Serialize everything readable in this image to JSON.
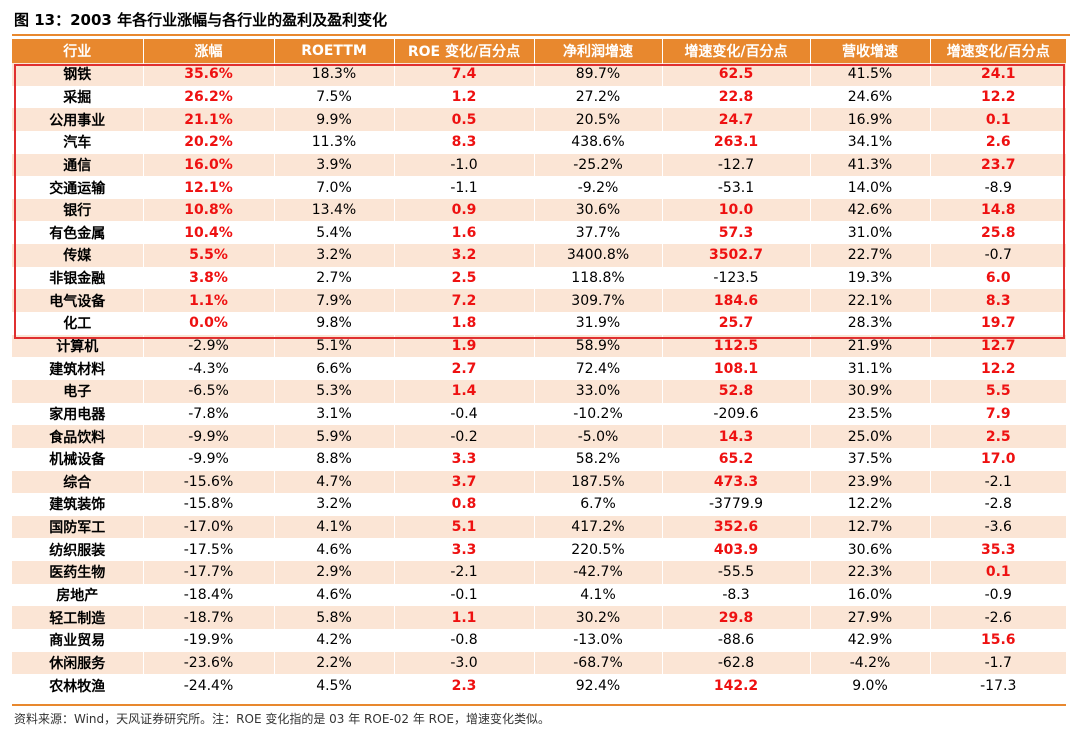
{
  "title": "图 13：2003 年各行业涨幅与各行业的盈利及盈利变化",
  "columns": [
    "行业",
    "涨幅",
    "ROETTM",
    "ROE 变化/百分点",
    "净利润增速",
    "增速变化/百分点",
    "营收增速",
    "增速变化/百分点"
  ],
  "highlight_color": "#ee1111",
  "header_color": "#e8882e",
  "rows": [
    {
      "c": [
        "钢铁",
        "35.6%",
        "18.3%",
        "7.4",
        "89.7%",
        "62.5",
        "41.5%",
        "24.1"
      ],
      "red": [
        1,
        3,
        5,
        7
      ]
    },
    {
      "c": [
        "采掘",
        "26.2%",
        "7.5%",
        "1.2",
        "27.2%",
        "22.8",
        "24.6%",
        "12.2"
      ],
      "red": [
        1,
        3,
        5,
        7
      ]
    },
    {
      "c": [
        "公用事业",
        "21.1%",
        "9.9%",
        "0.5",
        "20.5%",
        "24.7",
        "16.9%",
        "0.1"
      ],
      "red": [
        1,
        3,
        5,
        7
      ]
    },
    {
      "c": [
        "汽车",
        "20.2%",
        "11.3%",
        "8.3",
        "438.6%",
        "263.1",
        "34.1%",
        "2.6"
      ],
      "red": [
        1,
        3,
        5,
        7
      ]
    },
    {
      "c": [
        "通信",
        "16.0%",
        "3.9%",
        "-1.0",
        "-25.2%",
        "-12.7",
        "41.3%",
        "23.7"
      ],
      "red": [
        1,
        7
      ]
    },
    {
      "c": [
        "交通运输",
        "12.1%",
        "7.0%",
        "-1.1",
        "-9.2%",
        "-53.1",
        "14.0%",
        "-8.9"
      ],
      "red": [
        1
      ]
    },
    {
      "c": [
        "银行",
        "10.8%",
        "13.4%",
        "0.9",
        "30.6%",
        "10.0",
        "42.6%",
        "14.8"
      ],
      "red": [
        1,
        3,
        5,
        7
      ]
    },
    {
      "c": [
        "有色金属",
        "10.4%",
        "5.4%",
        "1.6",
        "37.7%",
        "57.3",
        "31.0%",
        "25.8"
      ],
      "red": [
        1,
        3,
        5,
        7
      ]
    },
    {
      "c": [
        "传媒",
        "5.5%",
        "3.2%",
        "3.2",
        "3400.8%",
        "3502.7",
        "22.7%",
        "-0.7"
      ],
      "red": [
        1,
        3,
        5
      ]
    },
    {
      "c": [
        "非银金融",
        "3.8%",
        "2.7%",
        "2.5",
        "118.8%",
        "-123.5",
        "19.3%",
        "6.0"
      ],
      "red": [
        1,
        3,
        7
      ]
    },
    {
      "c": [
        "电气设备",
        "1.1%",
        "7.9%",
        "7.2",
        "309.7%",
        "184.6",
        "22.1%",
        "8.3"
      ],
      "red": [
        1,
        3,
        5,
        7
      ]
    },
    {
      "c": [
        "化工",
        "0.0%",
        "9.8%",
        "1.8",
        "31.9%",
        "25.7",
        "28.3%",
        "19.7"
      ],
      "red": [
        1,
        3,
        5,
        7
      ]
    },
    {
      "c": [
        "计算机",
        "-2.9%",
        "5.1%",
        "1.9",
        "58.9%",
        "112.5",
        "21.9%",
        "12.7"
      ],
      "red": [
        3,
        5,
        7
      ]
    },
    {
      "c": [
        "建筑材料",
        "-4.3%",
        "6.6%",
        "2.7",
        "72.4%",
        "108.1",
        "31.1%",
        "12.2"
      ],
      "red": [
        3,
        5,
        7
      ]
    },
    {
      "c": [
        "电子",
        "-6.5%",
        "5.3%",
        "1.4",
        "33.0%",
        "52.8",
        "30.9%",
        "5.5"
      ],
      "red": [
        3,
        5,
        7
      ]
    },
    {
      "c": [
        "家用电器",
        "-7.8%",
        "3.1%",
        "-0.4",
        "-10.2%",
        "-209.6",
        "23.5%",
        "7.9"
      ],
      "red": [
        7
      ]
    },
    {
      "c": [
        "食品饮料",
        "-9.9%",
        "5.9%",
        "-0.2",
        "-5.0%",
        "14.3",
        "25.0%",
        "2.5"
      ],
      "red": [
        5,
        7
      ]
    },
    {
      "c": [
        "机械设备",
        "-9.9%",
        "8.8%",
        "3.3",
        "58.2%",
        "65.2",
        "37.5%",
        "17.0"
      ],
      "red": [
        3,
        5,
        7
      ]
    },
    {
      "c": [
        "综合",
        "-15.6%",
        "4.7%",
        "3.7",
        "187.5%",
        "473.3",
        "23.9%",
        "-2.1"
      ],
      "red": [
        3,
        5
      ]
    },
    {
      "c": [
        "建筑装饰",
        "-15.8%",
        "3.2%",
        "0.8",
        "6.7%",
        "-3779.9",
        "12.2%",
        "-2.8"
      ],
      "red": [
        3
      ]
    },
    {
      "c": [
        "国防军工",
        "-17.0%",
        "4.1%",
        "5.1",
        "417.2%",
        "352.6",
        "12.7%",
        "-3.6"
      ],
      "red": [
        3,
        5
      ]
    },
    {
      "c": [
        "纺织服装",
        "-17.5%",
        "4.6%",
        "3.3",
        "220.5%",
        "403.9",
        "30.6%",
        "35.3"
      ],
      "red": [
        3,
        5,
        7
      ]
    },
    {
      "c": [
        "医药生物",
        "-17.7%",
        "2.9%",
        "-2.1",
        "-42.7%",
        "-55.5",
        "22.3%",
        "0.1"
      ],
      "red": [
        7
      ]
    },
    {
      "c": [
        "房地产",
        "-18.4%",
        "4.6%",
        "-0.1",
        "4.1%",
        "-8.3",
        "16.0%",
        "-0.9"
      ],
      "red": []
    },
    {
      "c": [
        "轻工制造",
        "-18.7%",
        "5.8%",
        "1.1",
        "30.2%",
        "29.8",
        "27.9%",
        "-2.6"
      ],
      "red": [
        3,
        5
      ]
    },
    {
      "c": [
        "商业贸易",
        "-19.9%",
        "4.2%",
        "-0.8",
        "-13.0%",
        "-88.6",
        "42.9%",
        "15.6"
      ],
      "red": [
        7
      ]
    },
    {
      "c": [
        "休闲服务",
        "-23.6%",
        "2.2%",
        "-3.0",
        "-68.7%",
        "-62.8",
        "-4.2%",
        "-1.7"
      ],
      "red": []
    },
    {
      "c": [
        "农林牧渔",
        "-24.4%",
        "4.5%",
        "2.3",
        "92.4%",
        "142.2",
        "9.0%",
        "-17.3"
      ],
      "red": [
        3,
        5
      ]
    }
  ],
  "footnote": "资料来源：Wind，天风证券研究所。注：ROE 变化指的是 03 年 ROE-02 年 ROE，增速变化类似。"
}
